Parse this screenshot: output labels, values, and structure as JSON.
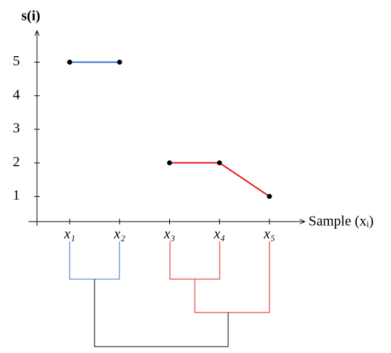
{
  "chart_data": {
    "type": "line",
    "y_label": "s(i)",
    "x_label": "Sample (xᵢ)",
    "categories": [
      "x₁",
      "x₂",
      "x₃",
      "x₄",
      "x₅"
    ],
    "series": [
      {
        "color": "#3a6fd0",
        "values": [
          5,
          5,
          null,
          null,
          null
        ]
      },
      {
        "color": "#e8151b",
        "values": [
          null,
          null,
          2,
          2,
          1
        ]
      }
    ],
    "point_color": "#000000",
    "ylim": [
      0.25,
      5.9
    ],
    "yticks": [
      1,
      2,
      3,
      4,
      5
    ]
  }
}
